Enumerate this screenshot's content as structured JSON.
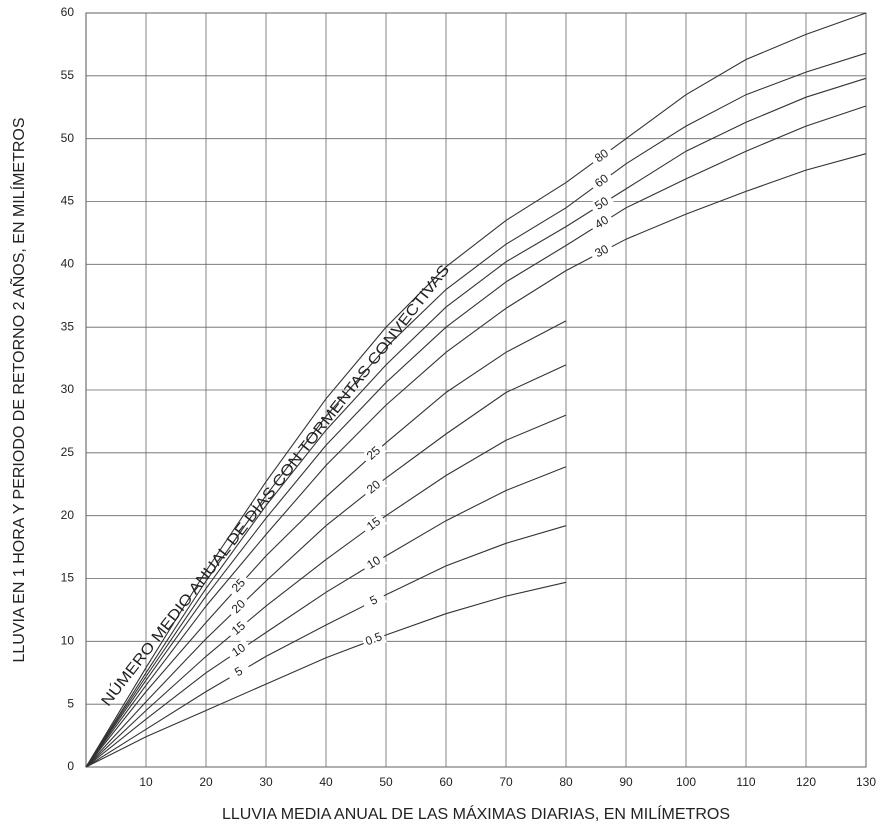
{
  "chart_data": {
    "type": "line",
    "x_label": "LLUVIA MEDIA ANUAL DE LAS MÁXIMAS DIARIAS, EN MILÍMETROS",
    "y_label": "LLUVIA EN 1 HORA Y PERIODO DE RETORNO 2 AÑOS, EN MILÍMETROS",
    "annotation": "NÚMERO MEDIO ANUAL DE DÍAS CON TORMENTAS CONVECTIVAS",
    "x": [
      0,
      10,
      20,
      30,
      40,
      50,
      60,
      70,
      80,
      90,
      100,
      110,
      120,
      130
    ],
    "xlim": [
      0,
      130
    ],
    "xticks": [
      10,
      20,
      30,
      40,
      50,
      60,
      70,
      80,
      90,
      100,
      110,
      120,
      130
    ],
    "ylim": [
      0,
      60
    ],
    "yticks": [
      0,
      5,
      10,
      15,
      20,
      25,
      30,
      35,
      40,
      45,
      50,
      55,
      60
    ],
    "grid": true,
    "series": [
      {
        "name": "0.5",
        "color": "#333333",
        "values": [
          0,
          2.4,
          4.5,
          6.6,
          8.7,
          10.5,
          12.2,
          13.6,
          14.7,
          null,
          null,
          null,
          null,
          null
        ]
      },
      {
        "name": "5",
        "color": "#333333",
        "values": [
          0,
          3,
          6,
          8.8,
          11.3,
          13.7,
          16,
          17.8,
          19.2,
          null,
          null,
          null,
          null,
          null
        ]
      },
      {
        "name": "10",
        "color": "#333333",
        "values": [
          0,
          3.8,
          7.5,
          10.7,
          13.9,
          16.8,
          19.6,
          22,
          23.9,
          null,
          null,
          null,
          null,
          null
        ]
      },
      {
        "name": "15",
        "color": "#333333",
        "values": [
          0,
          4.5,
          8.8,
          12.8,
          16.5,
          20,
          23.2,
          26,
          28,
          null,
          null,
          null,
          null,
          null
        ]
      },
      {
        "name": "20",
        "color": "#333333",
        "values": [
          0,
          5.2,
          10.2,
          14.8,
          19.2,
          23,
          26.5,
          29.8,
          32,
          null,
          null,
          null,
          null,
          null
        ]
      },
      {
        "name": "25",
        "color": "#333333",
        "values": [
          0,
          6,
          11.5,
          16.8,
          21.5,
          25.8,
          29.8,
          33,
          35.5,
          null,
          null,
          null,
          null,
          null
        ]
      },
      {
        "name": "30",
        "color": "#333333",
        "values": [
          0,
          6.5,
          12.8,
          18.5,
          24,
          28.8,
          33,
          36.5,
          39.5,
          42,
          44,
          45.8,
          47.5,
          48.8
        ]
      },
      {
        "name": "40",
        "color": "#333333",
        "values": [
          0,
          6.9,
          13.6,
          19.8,
          25.6,
          30.6,
          35,
          38.6,
          41.5,
          44.5,
          46.8,
          49,
          51,
          52.6
        ]
      },
      {
        "name": "50",
        "color": "#333333",
        "values": [
          0,
          7.2,
          14.2,
          20.8,
          26.8,
          32,
          36.6,
          40.2,
          43,
          46,
          49,
          51.3,
          53.3,
          54.8
        ]
      },
      {
        "name": "60",
        "color": "#333333",
        "values": [
          0,
          7.5,
          14.8,
          21.6,
          27.9,
          33.4,
          38,
          41.6,
          44.5,
          48,
          51,
          53.5,
          55.3,
          56.8
        ]
      },
      {
        "name": "80",
        "color": "#333333",
        "values": [
          0,
          7.9,
          15.6,
          22.7,
          29.3,
          35,
          39.8,
          43.5,
          46.5,
          50,
          53.5,
          56.3,
          58.3,
          60
        ]
      }
    ]
  }
}
